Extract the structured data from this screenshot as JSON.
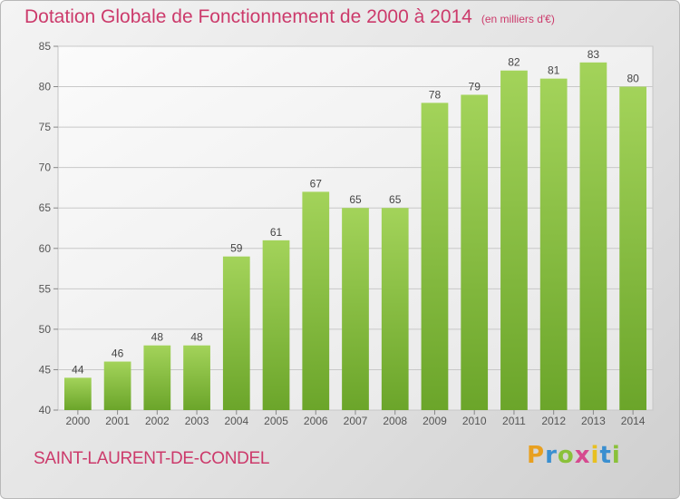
{
  "header": {
    "title": "Dotation Globale de Fonctionnement de 2000 à 2014",
    "subtitle": "(en milliers d'€)"
  },
  "footer": {
    "commune": "SAINT-LAURENT-DE-CONDEL",
    "logo_letters": [
      "P",
      "r",
      "o",
      "x",
      "i",
      "t",
      "i"
    ],
    "logo_colors": [
      "#e8a020",
      "#3a8fd0",
      "#8ac13a",
      "#d64a8f",
      "#e8c020",
      "#3a8fd0",
      "#8ac13a"
    ]
  },
  "chart_data": {
    "type": "bar",
    "title": "Dotation Globale de Fonctionnement de 2000 à 2014",
    "subtitle": "(en milliers d'€)",
    "categories": [
      "2000",
      "2001",
      "2002",
      "2003",
      "2004",
      "2005",
      "2006",
      "2007",
      "2008",
      "2009",
      "2010",
      "2011",
      "2012",
      "2013",
      "2014"
    ],
    "values": [
      44,
      46,
      48,
      48,
      59,
      61,
      67,
      65,
      65,
      78,
      79,
      82,
      81,
      83,
      80
    ],
    "ylim": [
      40,
      85
    ],
    "yticks": [
      40,
      45,
      50,
      55,
      60,
      65,
      70,
      75,
      80,
      85
    ],
    "grid": true,
    "colors": {
      "bar_top": "#a3d35a",
      "bar_bottom": "#6ba52a",
      "axis_text": "#555555",
      "grid": "#c8c8c8"
    }
  }
}
